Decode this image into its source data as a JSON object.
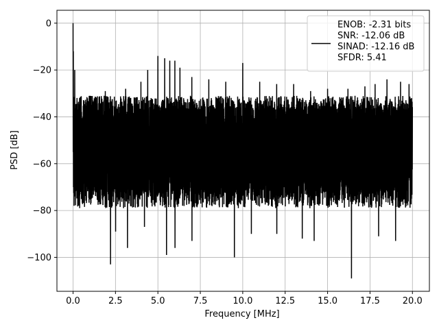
{
  "chart_data": {
    "type": "line",
    "xlabel": "Frequency [MHz]",
    "ylabel": "PSD [dB]",
    "xlim": [
      -0.95,
      21.0
    ],
    "ylim": [
      -114.5,
      5.5
    ],
    "grid": true,
    "legend_position": "top-right",
    "x_ticks": [
      0.0,
      2.5,
      5.0,
      7.5,
      10.0,
      12.5,
      15.0,
      17.5,
      20.0
    ],
    "x_tick_labels": [
      "0.0",
      "2.5",
      "5.0",
      "7.5",
      "10.0",
      "12.5",
      "15.0",
      "17.5",
      "20.0"
    ],
    "y_ticks": [
      0,
      -20,
      -40,
      -60,
      -80,
      -100
    ],
    "y_tick_labels": [
      "0",
      "−20",
      "−40",
      "−60",
      "−80",
      "−100"
    ],
    "legend": {
      "lines": [
        "ENOB: -2.31 bits",
        "SNR: -12.06 dB",
        "SINAD: -12.16 dB",
        "SFDR: 5.41"
      ]
    },
    "series": [
      {
        "color": "#000000",
        "approximate_profile": {
          "x_range": [
            0.0,
            20.0
          ],
          "dc_peak": {
            "x": 0.0,
            "y": 0.0
          },
          "typical_upper_envelope": -35,
          "typical_lower_envelope": -75,
          "spurs": [
            {
              "x": 0.1,
              "y": -20
            },
            {
              "x": 1.0,
              "y": -31
            },
            {
              "x": 1.9,
              "y": -29
            },
            {
              "x": 3.1,
              "y": -28
            },
            {
              "x": 4.0,
              "y": -25
            },
            {
              "x": 4.4,
              "y": -20
            },
            {
              "x": 5.0,
              "y": -14
            },
            {
              "x": 5.4,
              "y": -15
            },
            {
              "x": 5.7,
              "y": -16
            },
            {
              "x": 6.0,
              "y": -16
            },
            {
              "x": 6.3,
              "y": -19
            },
            {
              "x": 7.0,
              "y": -23
            },
            {
              "x": 8.0,
              "y": -24
            },
            {
              "x": 9.0,
              "y": -25
            },
            {
              "x": 10.0,
              "y": -17
            },
            {
              "x": 11.0,
              "y": -25
            },
            {
              "x": 12.0,
              "y": -26
            },
            {
              "x": 13.0,
              "y": -26
            },
            {
              "x": 14.0,
              "y": -29
            },
            {
              "x": 15.0,
              "y": -28
            },
            {
              "x": 16.2,
              "y": -28
            },
            {
              "x": 17.2,
              "y": -27
            },
            {
              "x": 17.8,
              "y": -26
            },
            {
              "x": 18.5,
              "y": -24
            },
            {
              "x": 19.3,
              "y": -25
            },
            {
              "x": 19.8,
              "y": -26
            }
          ],
          "notches": [
            {
              "x": 2.2,
              "y": -103
            },
            {
              "x": 2.5,
              "y": -89
            },
            {
              "x": 3.2,
              "y": -96
            },
            {
              "x": 4.2,
              "y": -87
            },
            {
              "x": 5.5,
              "y": -99
            },
            {
              "x": 6.0,
              "y": -96
            },
            {
              "x": 7.0,
              "y": -93
            },
            {
              "x": 9.5,
              "y": -100
            },
            {
              "x": 10.5,
              "y": -90
            },
            {
              "x": 12.0,
              "y": -90
            },
            {
              "x": 13.5,
              "y": -92
            },
            {
              "x": 14.2,
              "y": -93
            },
            {
              "x": 16.4,
              "y": -109
            },
            {
              "x": 18.0,
              "y": -91
            },
            {
              "x": 19.0,
              "y": -93
            }
          ]
        }
      }
    ]
  }
}
